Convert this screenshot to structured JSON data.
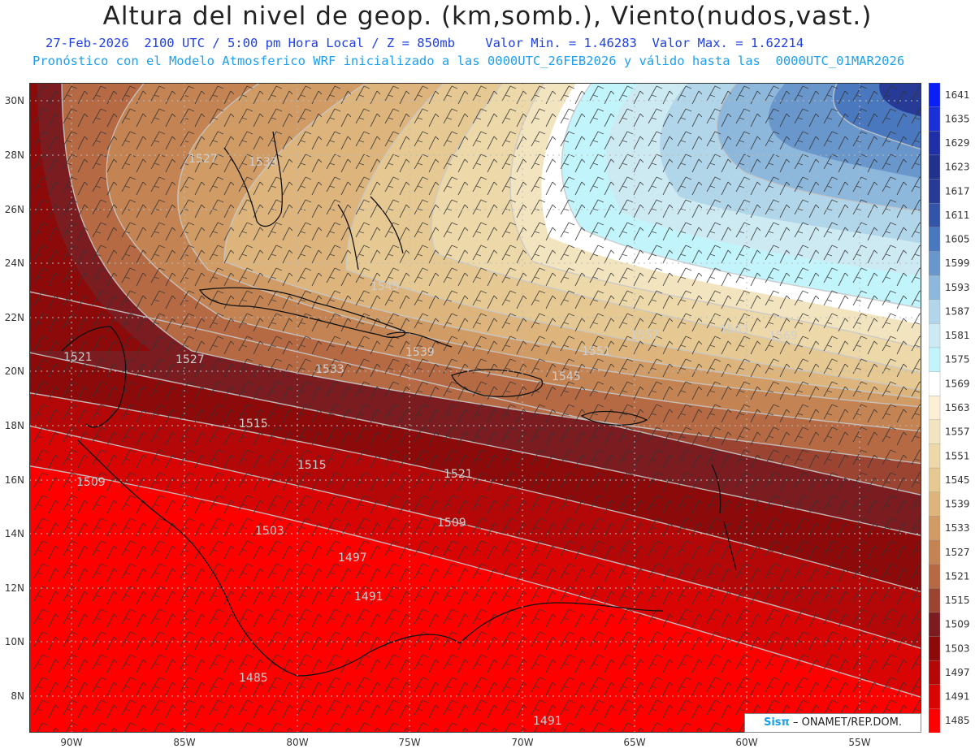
{
  "header": {
    "title": "Altura del nivel de geop. (km,somb.), Viento(nudos,vast.)",
    "line2": "27-Feb-2026  2100 UTC / 5:00 pm Hora Local / Z = 850mb    Valor Min. = 1.46283  Valor Max. = 1.62214",
    "line3": "Pronóstico con el Modelo Atmosferico WRF inicializado a las 0000UTC_26FEB2026 y válido hasta las  0000UTC_01MAR2026"
  },
  "axes": {
    "lon_labels": [
      "90W",
      "85W",
      "80W",
      "75W",
      "70W",
      "65W",
      "60W",
      "55W"
    ],
    "lat_labels": [
      "30N",
      "28N",
      "26N",
      "24N",
      "22N",
      "20N",
      "18N",
      "16N",
      "14N",
      "12N",
      "10N",
      "8N"
    ]
  },
  "colorbar": {
    "levels": [
      "1641",
      "1635",
      "1629",
      "1623",
      "1617",
      "1611",
      "1605",
      "1599",
      "1593",
      "1587",
      "1581",
      "1575",
      "1569",
      "1563",
      "1557",
      "1551",
      "1545",
      "1539",
      "1533",
      "1527",
      "1521",
      "1515",
      "1509",
      "1503",
      "1497",
      "1491",
      "1485"
    ],
    "colors": [
      "#0a1ff5",
      "#1a2fd8",
      "#1e2fa8",
      "#22318c",
      "#273b96",
      "#3355a8",
      "#4a78be",
      "#6a97cb",
      "#8eb8db",
      "#b2d6e9",
      "#cdeaf3",
      "#c2f4fb",
      "#ffffff",
      "#fbf0d6",
      "#f3e4c0",
      "#ecd8a8",
      "#e6c992",
      "#dcb47c",
      "#d19b66",
      "#c48352",
      "#b56a44",
      "#9b4432",
      "#7a1c20",
      "#8c0a0a",
      "#b40808",
      "#d90404",
      "#ff0000"
    ]
  },
  "contour_labels": [
    "1527",
    "1533",
    "1545",
    "1521",
    "1527",
    "1533",
    "1539",
    "1551",
    "1557",
    "1563",
    "1569",
    "1545",
    "1515",
    "1509",
    "1515",
    "1521",
    "1503",
    "1509",
    "1497",
    "1491",
    "1485",
    "1491"
  ],
  "credit": {
    "brand": "Sisπ",
    "org": "– ONAMET/REP.DOM."
  }
}
